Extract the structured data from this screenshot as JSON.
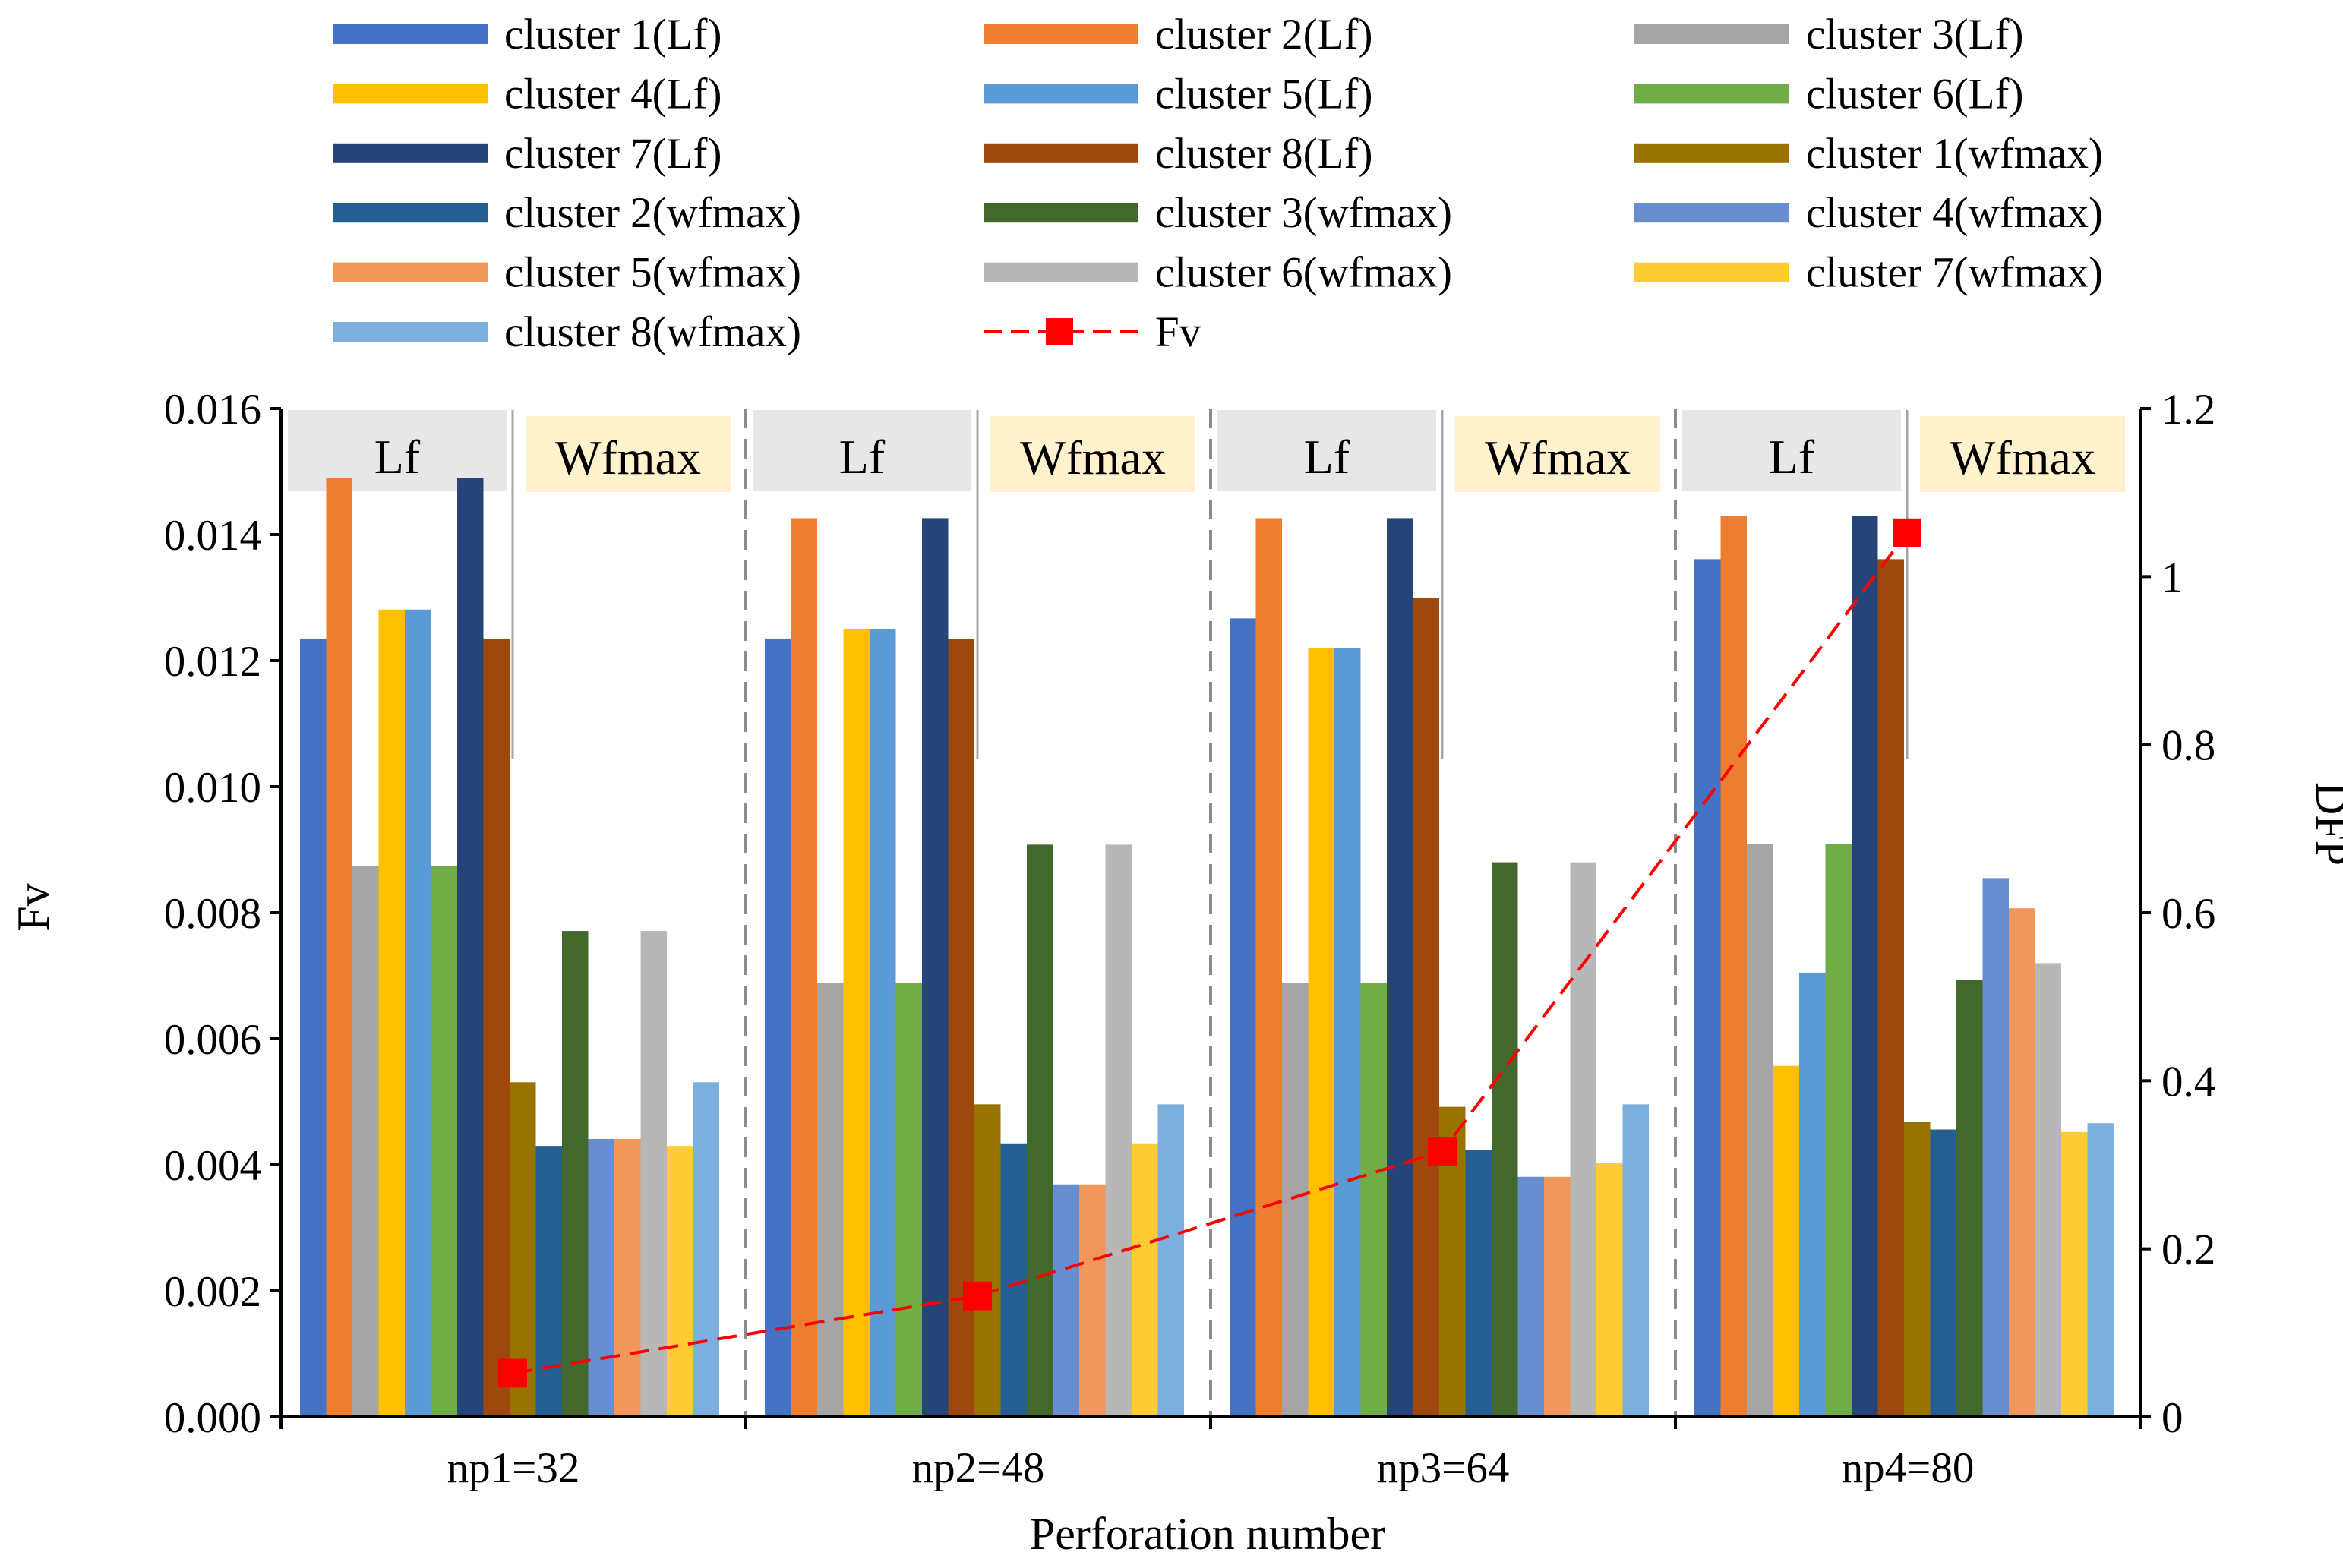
{
  "chart_data": {
    "type": "bar",
    "xlabel": "Perforation number",
    "ylabel": "Fv",
    "y2label": "DFP",
    "categories": [
      "np1=32",
      "np2=48",
      "np3=64",
      "np4=80"
    ],
    "ylim": [
      0,
      0.016
    ],
    "y2lim": [
      0,
      1.2
    ],
    "yticks": [
      "0.000",
      "0.002",
      "0.004",
      "0.006",
      "0.008",
      "0.010",
      "0.012",
      "0.014",
      "0.016"
    ],
    "y2ticks": [
      "0",
      "0.2",
      "0.4",
      "0.6",
      "0.8",
      "1",
      "1.2"
    ],
    "group_labels": {
      "lf": "Lf",
      "wfmax": "Wfmax"
    },
    "series": [
      {
        "name": "cluster 1(Lf)",
        "color": "#4472C4",
        "values": [
          0.01235,
          0.01235,
          0.01267,
          0.01361
        ]
      },
      {
        "name": "cluster 2(Lf)",
        "color": "#ED7D31",
        "values": [
          0.0149,
          0.01426,
          0.01426,
          0.01429
        ]
      },
      {
        "name": "cluster 3(Lf)",
        "color": "#A5A5A5",
        "values": [
          0.00874,
          0.00688,
          0.00688,
          0.00909
        ]
      },
      {
        "name": "cluster 4(Lf)",
        "color": "#FFC000",
        "values": [
          0.01281,
          0.0125,
          0.0122,
          0.00557
        ]
      },
      {
        "name": "cluster 5(Lf)",
        "color": "#5B9BD5",
        "values": [
          0.01281,
          0.0125,
          0.0122,
          0.00705
        ]
      },
      {
        "name": "cluster 6(Lf)",
        "color": "#70AD47",
        "values": [
          0.00874,
          0.00688,
          0.00688,
          0.00909
        ]
      },
      {
        "name": "cluster 7(Lf)",
        "color": "#264478",
        "values": [
          0.0149,
          0.01426,
          0.01426,
          0.01429
        ]
      },
      {
        "name": "cluster 8(Lf)",
        "color": "#9E480E",
        "values": [
          0.01235,
          0.01235,
          0.013,
          0.01361
        ]
      },
      {
        "name": "cluster 1(wfmax)",
        "color": "#997300",
        "values": [
          0.00531,
          0.00496,
          0.00492,
          0.00468
        ]
      },
      {
        "name": "cluster 2(wfmax)",
        "color": "#255E91",
        "values": [
          0.0043,
          0.00434,
          0.00423,
          0.00456
        ]
      },
      {
        "name": "cluster 3(wfmax)",
        "color": "#43682B",
        "values": [
          0.00771,
          0.00908,
          0.0088,
          0.00694
        ]
      },
      {
        "name": "cluster 4(wfmax)",
        "color": "#698ED0",
        "values": [
          0.00441,
          0.00369,
          0.00381,
          0.00855
        ]
      },
      {
        "name": "cluster 5(wfmax)",
        "color": "#F1975A",
        "values": [
          0.00441,
          0.00369,
          0.00381,
          0.00807
        ]
      },
      {
        "name": "cluster 6(wfmax)",
        "color": "#B7B7B7",
        "values": [
          0.00771,
          0.00908,
          0.0088,
          0.0072
        ]
      },
      {
        "name": "cluster 7(wfmax)",
        "color": "#FFCD33",
        "values": [
          0.0043,
          0.00434,
          0.00403,
          0.00452
        ]
      },
      {
        "name": "cluster 8(wfmax)",
        "color": "#7CAFDD",
        "values": [
          0.00531,
          0.00496,
          0.00496,
          0.00466
        ]
      }
    ],
    "line": {
      "name": "Fv",
      "color": "#FF0000",
      "axis": "right",
      "values": [
        0.052,
        0.144,
        0.316,
        1.052
      ]
    }
  }
}
